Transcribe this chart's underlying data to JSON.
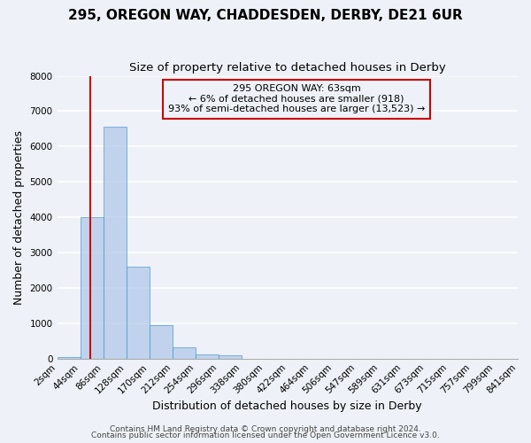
{
  "title": "295, OREGON WAY, CHADDESDEN, DERBY, DE21 6UR",
  "subtitle": "Size of property relative to detached houses in Derby",
  "xlabel": "Distribution of detached houses by size in Derby",
  "ylabel": "Number of detached properties",
  "bin_labels": [
    "2sqm",
    "44sqm",
    "86sqm",
    "128sqm",
    "170sqm",
    "212sqm",
    "254sqm",
    "296sqm",
    "338sqm",
    "380sqm",
    "422sqm",
    "464sqm",
    "506sqm",
    "547sqm",
    "589sqm",
    "631sqm",
    "673sqm",
    "715sqm",
    "757sqm",
    "799sqm",
    "841sqm"
  ],
  "bar_values": [
    50,
    4000,
    6550,
    2600,
    950,
    320,
    110,
    90,
    0,
    0,
    0,
    0,
    0,
    0,
    0,
    0,
    0,
    0,
    0,
    0
  ],
  "bar_color": "#aec6e8",
  "bar_edge_color": "#5a9fd4",
  "bar_alpha": 0.7,
  "vline_x": 63,
  "vline_color": "#cc0000",
  "annotation_line1": "295 OREGON WAY: 63sqm",
  "annotation_line2": "← 6% of detached houses are smaller (918)",
  "annotation_line3": "93% of semi-detached houses are larger (13,523) →",
  "box_edge_color": "#cc0000",
  "ylim": [
    0,
    8000
  ],
  "yticks": [
    0,
    1000,
    2000,
    3000,
    4000,
    5000,
    6000,
    7000,
    8000
  ],
  "footnote1": "Contains HM Land Registry data © Crown copyright and database right 2024.",
  "footnote2": "Contains public sector information licensed under the Open Government Licence v3.0.",
  "bg_color": "#eef2f8",
  "grid_color": "#ffffff",
  "title_fontsize": 11,
  "subtitle_fontsize": 9.5,
  "axis_label_fontsize": 9,
  "tick_fontsize": 7.5,
  "annotation_fontsize": 8,
  "footnote_fontsize": 6.5
}
